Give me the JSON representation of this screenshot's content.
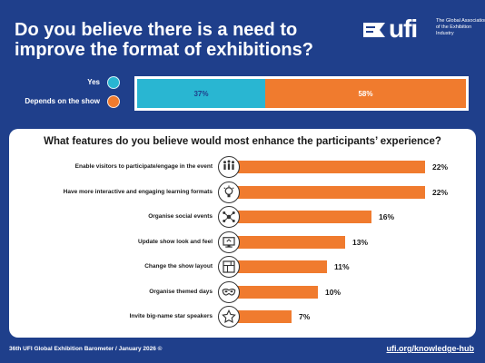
{
  "header": {
    "title": "Do you believe there is a need to improve the format of exhibitions?",
    "logo_text": "ufi",
    "logo_tagline": "The Global Association of the Exhibition Industry"
  },
  "colors": {
    "background": "#1f3f8b",
    "yes": "#29b6d2",
    "depends": "#f07b2e",
    "bar": "#f07b2e"
  },
  "chart_data": [
    {
      "type": "bar",
      "orientation": "horizontal-stacked",
      "series": [
        {
          "name": "Yes",
          "value": 37,
          "label": "37%"
        },
        {
          "name": "Depends on the show",
          "value": 58,
          "label": "58%"
        }
      ],
      "legend_position": "left"
    },
    {
      "type": "bar",
      "orientation": "horizontal",
      "title": "What features do you believe would most enhance the participants’ experience?",
      "categories": [
        "Enable visitors to participate/engage in the event",
        "Have more interactive and engaging learning formats",
        "Organise social events",
        "Update show look and feel",
        "Change the show layout",
        "Organise themed days",
        "Invite big-name star speakers"
      ],
      "values": [
        22,
        22,
        16,
        13,
        11,
        10,
        7
      ],
      "value_labels": [
        "22%",
        "22%",
        "16%",
        "13%",
        "11%",
        "10%",
        "7%"
      ],
      "icons": [
        "people-icon",
        "lightbulb-icon",
        "network-icon",
        "monitor-icon",
        "layout-icon",
        "mask-icon",
        "star-icon"
      ],
      "grid": false
    }
  ],
  "footer": {
    "source": "36th UFI Global Exhibition Barometer / January 2026 ©",
    "link": "ufi.org/knowledge-hub"
  }
}
